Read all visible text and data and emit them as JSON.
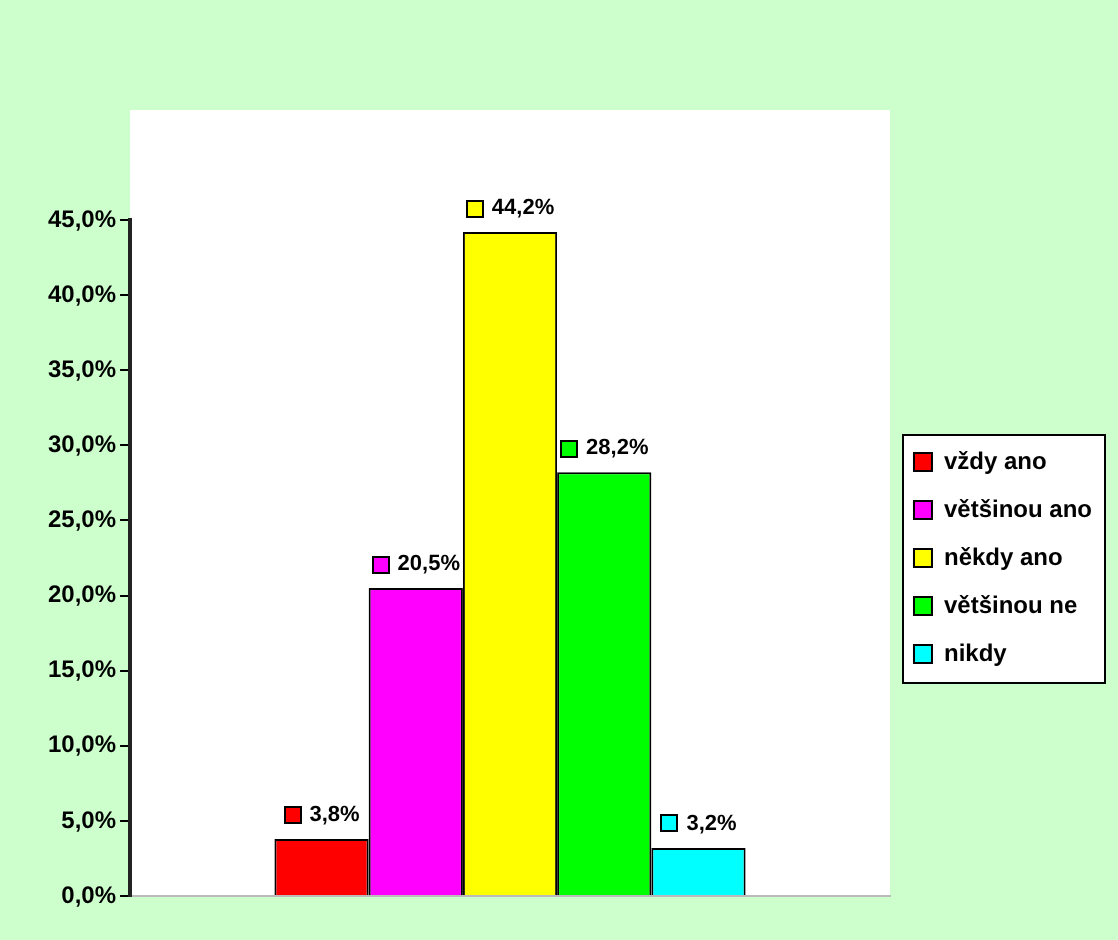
{
  "chart_data": {
    "type": "bar",
    "categories": [
      null
    ],
    "series": [
      {
        "name": "vždy ano",
        "color": "#ff0000",
        "values": [
          3.8
        ],
        "value_labels": [
          "3,8%"
        ]
      },
      {
        "name": "většinou ano",
        "color": "#ff00ff",
        "values": [
          20.5
        ],
        "value_labels": [
          "20,5%"
        ]
      },
      {
        "name": "někdy ano",
        "color": "#ffff00",
        "values": [
          44.2
        ],
        "value_labels": [
          "44,2%"
        ]
      },
      {
        "name": "většinou ne",
        "color": "#00ff00",
        "values": [
          28.2
        ],
        "value_labels": [
          "28,2%"
        ]
      },
      {
        "name": "nikdy",
        "color": "#00ffff",
        "values": [
          3.2
        ],
        "value_labels": [
          "3,2%"
        ]
      }
    ],
    "ylim": [
      0,
      45
    ],
    "yticks": [
      {
        "value": 0,
        "label": "0,0%"
      },
      {
        "value": 5,
        "label": "5,0%"
      },
      {
        "value": 10,
        "label": "10,0%"
      },
      {
        "value": 15,
        "label": "15,0%"
      },
      {
        "value": 20,
        "label": "20,0%"
      },
      {
        "value": 25,
        "label": "25,0%"
      },
      {
        "value": 30,
        "label": "30,0%"
      },
      {
        "value": 35,
        "label": "35,0%"
      },
      {
        "value": 40,
        "label": "40,0%"
      },
      {
        "value": 45,
        "label": "45,0%"
      }
    ],
    "legend": "right",
    "tick_labels": "y"
  }
}
